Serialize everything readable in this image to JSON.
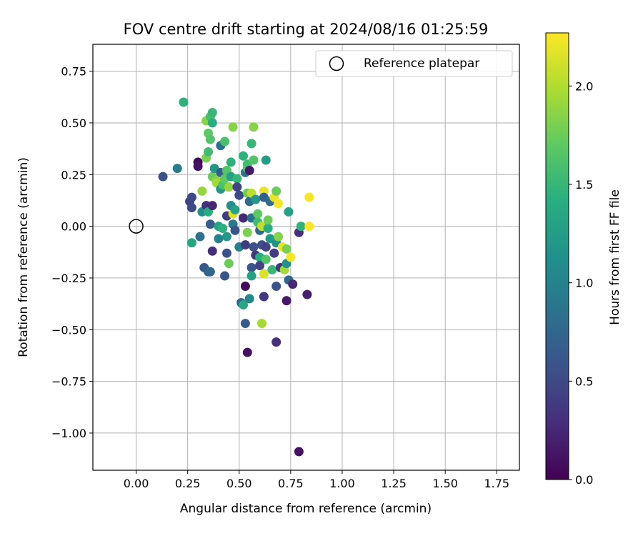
{
  "chart_data": {
    "type": "scatter",
    "title": "FOV centre drift starting at 2024/08/16 01:25:59",
    "xlabel": "Angular distance from reference (arcmin)",
    "ylabel": "Rotation from reference (arcmin)",
    "xlim": [
      -0.21,
      1.86
    ],
    "ylim": [
      -1.18,
      0.88
    ],
    "xticks": [
      0.0,
      0.25,
      0.5,
      0.75,
      1.0,
      1.25,
      1.5,
      1.75
    ],
    "xtick_labels": [
      "0.00",
      "0.25",
      "0.50",
      "0.75",
      "1.00",
      "1.25",
      "1.50",
      "1.75"
    ],
    "yticks": [
      0.75,
      0.5,
      0.25,
      0.0,
      -0.25,
      -0.5,
      -0.75,
      -1.0
    ],
    "ytick_labels": [
      "0.75",
      "0.50",
      "0.25",
      "0.00",
      "−0.25",
      "−0.50",
      "−0.75",
      "−1.00"
    ],
    "grid": true,
    "legend": {
      "position": "top-right",
      "entries": [
        "Reference platepar"
      ]
    },
    "reference_point": {
      "x": 0.0,
      "y": 0.0
    },
    "colorbar": {
      "label": "Hours from first FF file",
      "colormap": "viridis",
      "range": [
        0.0,
        2.27
      ],
      "ticks": [
        0.0,
        0.5,
        1.0,
        1.5,
        2.0
      ],
      "tick_labels": [
        "0.0",
        "0.5",
        "1.0",
        "1.5",
        "2.0"
      ]
    },
    "points": [
      {
        "x": 0.23,
        "y": 0.6,
        "h": 1.45
      },
      {
        "x": 0.13,
        "y": 0.24,
        "h": 0.55
      },
      {
        "x": 0.2,
        "y": 0.28,
        "h": 0.95
      },
      {
        "x": 0.26,
        "y": 0.12,
        "h": 0.45
      },
      {
        "x": 0.27,
        "y": 0.14,
        "h": 0.5
      },
      {
        "x": 0.27,
        "y": 0.09,
        "h": 0.5
      },
      {
        "x": 0.27,
        "y": -0.08,
        "h": 1.35
      },
      {
        "x": 0.3,
        "y": 0.31,
        "h": 0.05
      },
      {
        "x": 0.3,
        "y": 0.29,
        "h": 0.1
      },
      {
        "x": 0.31,
        "y": -0.05,
        "h": 0.85
      },
      {
        "x": 0.32,
        "y": 0.17,
        "h": 1.9
      },
      {
        "x": 0.32,
        "y": 0.07,
        "h": 1.1
      },
      {
        "x": 0.33,
        "y": -0.2,
        "h": 0.6
      },
      {
        "x": 0.34,
        "y": 0.33,
        "h": 1.8
      },
      {
        "x": 0.34,
        "y": 0.51,
        "h": 1.85
      },
      {
        "x": 0.34,
        "y": 0.1,
        "h": 0.3
      },
      {
        "x": 0.35,
        "y": -0.22,
        "h": 0.7
      },
      {
        "x": 0.35,
        "y": 0.45,
        "h": 1.7
      },
      {
        "x": 0.35,
        "y": 0.36,
        "h": 1.55
      },
      {
        "x": 0.35,
        "y": 0.07,
        "h": 1.4
      },
      {
        "x": 0.36,
        "y": 0.53,
        "h": 1.6
      },
      {
        "x": 0.36,
        "y": 0.42,
        "h": 1.65
      },
      {
        "x": 0.36,
        "y": 0.01,
        "h": 0.65
      },
      {
        "x": 0.36,
        "y": -0.22,
        "h": 0.75
      },
      {
        "x": 0.37,
        "y": 0.55,
        "h": 1.5
      },
      {
        "x": 0.37,
        "y": 0.5,
        "h": 1.4
      },
      {
        "x": 0.37,
        "y": 0.24,
        "h": 1.75
      },
      {
        "x": 0.37,
        "y": 0.1,
        "h": 0.25
      },
      {
        "x": 0.37,
        "y": -0.12,
        "h": 0.3
      },
      {
        "x": 0.38,
        "y": 0.28,
        "h": 1.2
      },
      {
        "x": 0.39,
        "y": 0.22,
        "h": 1.85
      },
      {
        "x": 0.39,
        "y": 0.21,
        "h": 1.95
      },
      {
        "x": 0.4,
        "y": 0.0,
        "h": 1.3
      },
      {
        "x": 0.4,
        "y": -0.06,
        "h": 1.0
      },
      {
        "x": 0.41,
        "y": 0.39,
        "h": 0.85
      },
      {
        "x": 0.41,
        "y": 0.26,
        "h": 0.7
      },
      {
        "x": 0.41,
        "y": 0.18,
        "h": 1.2
      },
      {
        "x": 0.42,
        "y": 0.2,
        "h": 1.6
      },
      {
        "x": 0.42,
        "y": -0.01,
        "h": 1.45
      },
      {
        "x": 0.43,
        "y": 0.41,
        "h": 1.6
      },
      {
        "x": 0.43,
        "y": 0.23,
        "h": 1.7
      },
      {
        "x": 0.43,
        "y": -0.24,
        "h": 0.6
      },
      {
        "x": 0.44,
        "y": 0.27,
        "h": 1.65
      },
      {
        "x": 0.44,
        "y": 0.05,
        "h": 0.4
      },
      {
        "x": 0.44,
        "y": -0.05,
        "h": 1.2
      },
      {
        "x": 0.44,
        "y": -0.13,
        "h": 0.55
      },
      {
        "x": 0.45,
        "y": -0.18,
        "h": 1.75
      },
      {
        "x": 0.45,
        "y": 0.19,
        "h": 1.9
      },
      {
        "x": 0.46,
        "y": 0.31,
        "h": 1.45
      },
      {
        "x": 0.46,
        "y": 0.24,
        "h": 1.3
      },
      {
        "x": 0.46,
        "y": 0.1,
        "h": 1.1
      },
      {
        "x": 0.47,
        "y": 0.48,
        "h": 1.85
      },
      {
        "x": 0.47,
        "y": 0.06,
        "h": 2.15
      },
      {
        "x": 0.47,
        "y": 0.01,
        "h": 0.9
      },
      {
        "x": 0.48,
        "y": -0.02,
        "h": 0.6
      },
      {
        "x": 0.48,
        "y": 0.08,
        "h": 1.3
      },
      {
        "x": 0.49,
        "y": 0.23,
        "h": 1.5
      },
      {
        "x": 0.49,
        "y": 0.19,
        "h": 0.45
      },
      {
        "x": 0.5,
        "y": 0.15,
        "h": 0.5
      },
      {
        "x": 0.5,
        "y": -0.1,
        "h": 1.0
      },
      {
        "x": 0.51,
        "y": -0.37,
        "h": 0.7
      },
      {
        "x": 0.52,
        "y": 0.34,
        "h": 1.45
      },
      {
        "x": 0.52,
        "y": 0.04,
        "h": 0.25
      },
      {
        "x": 0.52,
        "y": -0.38,
        "h": 1.35
      },
      {
        "x": 0.53,
        "y": -0.29,
        "h": 0.05
      },
      {
        "x": 0.53,
        "y": -0.47,
        "h": 0.65
      },
      {
        "x": 0.53,
        "y": 0.26,
        "h": 0.85
      },
      {
        "x": 0.53,
        "y": -0.09,
        "h": 0.4
      },
      {
        "x": 0.54,
        "y": 0.28,
        "h": 1.65
      },
      {
        "x": 0.54,
        "y": 0.3,
        "h": 1.55
      },
      {
        "x": 0.54,
        "y": -0.61,
        "h": 0.1
      },
      {
        "x": 0.54,
        "y": 0.16,
        "h": 1.75
      },
      {
        "x": 0.54,
        "y": -0.03,
        "h": 1.8
      },
      {
        "x": 0.55,
        "y": 0.27,
        "h": 0.15
      },
      {
        "x": 0.55,
        "y": -0.35,
        "h": 1.05
      },
      {
        "x": 0.55,
        "y": 0.12,
        "h": 0.8
      },
      {
        "x": 0.56,
        "y": -0.2,
        "h": 0.6
      },
      {
        "x": 0.56,
        "y": -0.24,
        "h": 1.3
      },
      {
        "x": 0.56,
        "y": 0.4,
        "h": 1.5
      },
      {
        "x": 0.56,
        "y": 0.16,
        "h": 2.05
      },
      {
        "x": 0.56,
        "y": 0.04,
        "h": 0.85
      },
      {
        "x": 0.57,
        "y": 0.32,
        "h": 1.65
      },
      {
        "x": 0.57,
        "y": 0.48,
        "h": 1.85
      },
      {
        "x": 0.57,
        "y": -0.1,
        "h": 0.55
      },
      {
        "x": 0.58,
        "y": 0.13,
        "h": 1.2
      },
      {
        "x": 0.58,
        "y": -0.14,
        "h": 0.35
      },
      {
        "x": 0.59,
        "y": 0.06,
        "h": 1.7
      },
      {
        "x": 0.59,
        "y": 0.02,
        "h": 1.55
      },
      {
        "x": 0.6,
        "y": -0.15,
        "h": 1.4
      },
      {
        "x": 0.6,
        "y": -0.19,
        "h": 0.45
      },
      {
        "x": 0.6,
        "y": -0.02,
        "h": 0.75
      },
      {
        "x": 0.61,
        "y": -0.47,
        "h": 1.95
      },
      {
        "x": 0.61,
        "y": 0.0,
        "h": 2.05
      },
      {
        "x": 0.61,
        "y": -0.09,
        "h": 0.55
      },
      {
        "x": 0.62,
        "y": 0.17,
        "h": 2.2
      },
      {
        "x": 0.62,
        "y": -0.23,
        "h": 2.15
      },
      {
        "x": 0.62,
        "y": -0.34,
        "h": 0.35
      },
      {
        "x": 0.62,
        "y": 0.14,
        "h": 0.7
      },
      {
        "x": 0.63,
        "y": 0.32,
        "h": 1.25
      },
      {
        "x": 0.63,
        "y": -0.16,
        "h": 1.65
      },
      {
        "x": 0.63,
        "y": -0.1,
        "h": 0.45
      },
      {
        "x": 0.64,
        "y": -0.01,
        "h": 1.4
      },
      {
        "x": 0.64,
        "y": 0.03,
        "h": 1.75
      },
      {
        "x": 0.65,
        "y": 0.12,
        "h": 0.8
      },
      {
        "x": 0.65,
        "y": -0.06,
        "h": 1.2
      },
      {
        "x": 0.66,
        "y": -0.21,
        "h": 1.5
      },
      {
        "x": 0.67,
        "y": 0.14,
        "h": 2.2
      },
      {
        "x": 0.67,
        "y": -0.13,
        "h": 0.4
      },
      {
        "x": 0.68,
        "y": -0.29,
        "h": 0.55
      },
      {
        "x": 0.68,
        "y": -0.56,
        "h": 0.3
      },
      {
        "x": 0.68,
        "y": -0.08,
        "h": 1.15
      },
      {
        "x": 0.68,
        "y": 0.17,
        "h": 1.75
      },
      {
        "x": 0.69,
        "y": -0.05,
        "h": 1.85
      },
      {
        "x": 0.69,
        "y": 0.11,
        "h": 2.25
      },
      {
        "x": 0.7,
        "y": -0.2,
        "h": 0.35
      },
      {
        "x": 0.71,
        "y": -0.1,
        "h": 2.2
      },
      {
        "x": 0.72,
        "y": -0.21,
        "h": 1.95
      },
      {
        "x": 0.73,
        "y": -0.36,
        "h": 0.15
      },
      {
        "x": 0.73,
        "y": -0.11,
        "h": 1.8
      },
      {
        "x": 0.73,
        "y": -0.18,
        "h": 1.15
      },
      {
        "x": 0.74,
        "y": 0.07,
        "h": 1.3
      },
      {
        "x": 0.74,
        "y": -0.26,
        "h": 0.75
      },
      {
        "x": 0.75,
        "y": -0.15,
        "h": 2.25
      },
      {
        "x": 0.76,
        "y": -0.28,
        "h": 0.25
      },
      {
        "x": 0.79,
        "y": -1.09,
        "h": 0.1
      },
      {
        "x": 0.79,
        "y": -0.03,
        "h": 0.3
      },
      {
        "x": 0.8,
        "y": 0.0,
        "h": 1.45
      },
      {
        "x": 0.83,
        "y": -0.33,
        "h": 0.2
      },
      {
        "x": 0.84,
        "y": 0.14,
        "h": 2.25
      },
      {
        "x": 0.84,
        "y": 0.0,
        "h": 2.27
      }
    ]
  }
}
